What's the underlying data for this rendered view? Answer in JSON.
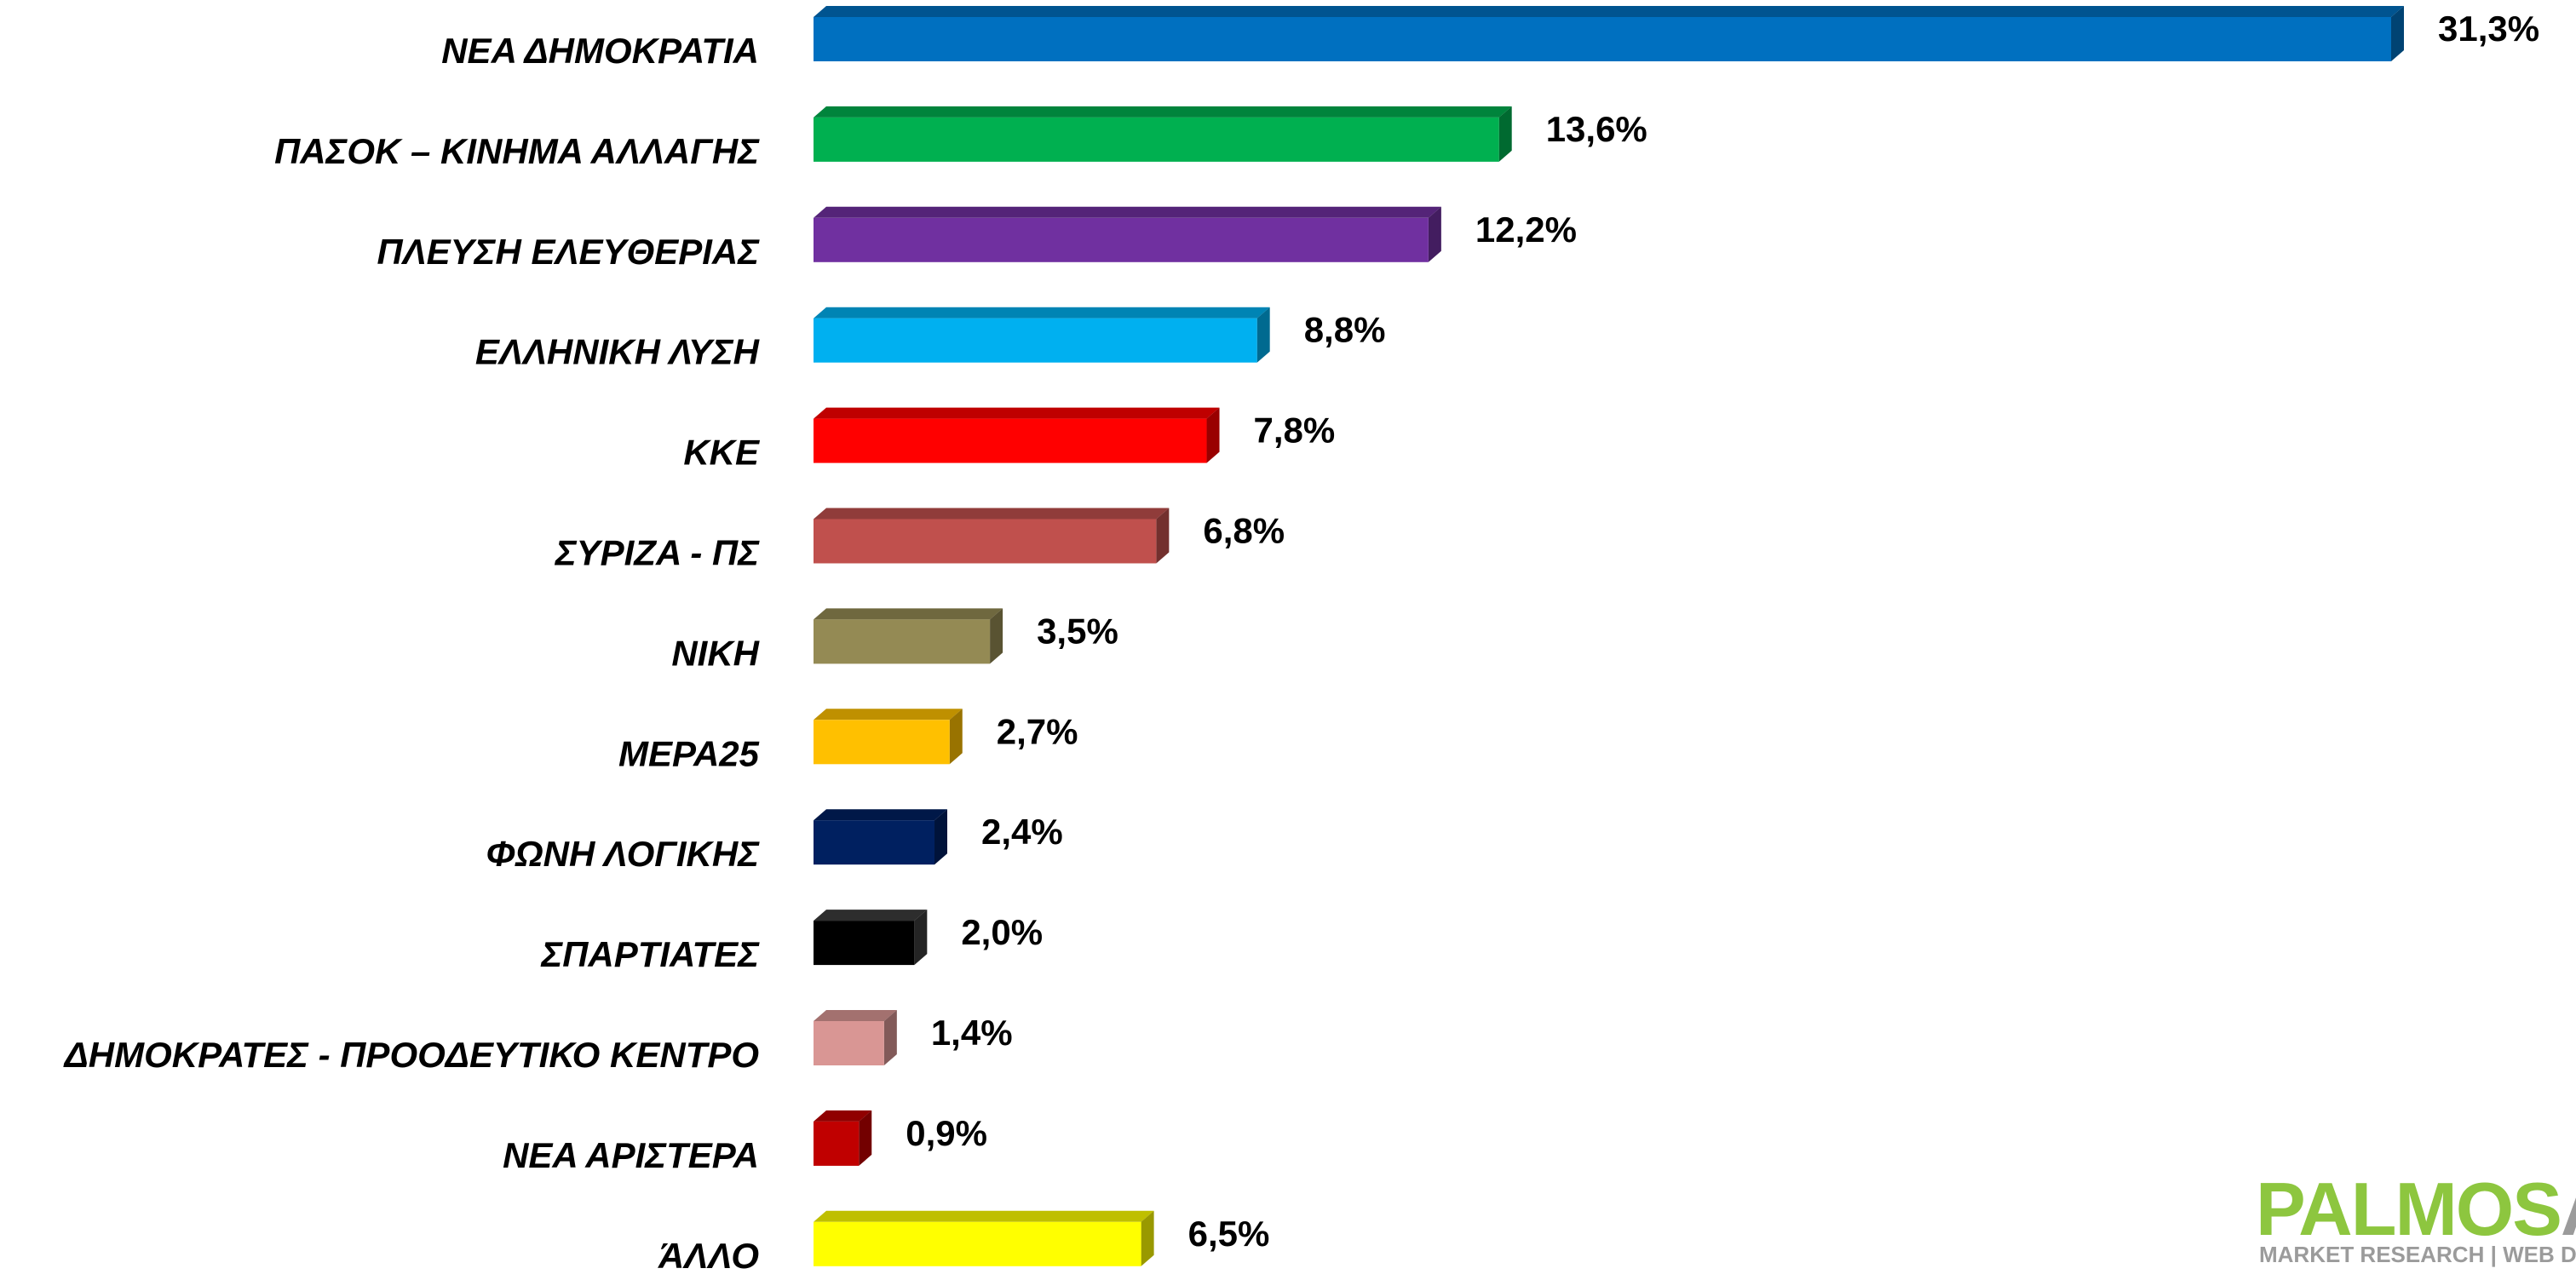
{
  "chart_data": {
    "type": "bar",
    "orientation": "horizontal",
    "categories": [
      "ΝΕΑ ΔΗΜΟΚΡΑΤΙΑ",
      "ΠΑΣΟΚ – ΚΙΝΗΜΑ ΑΛΛΑΓΗΣ",
      "ΠΛΕΥΣΗ ΕΛΕΥΘΕΡΙΑΣ",
      "ΕΛΛΗΝΙΚΗ ΛΥΣΗ",
      "ΚΚΕ",
      "ΣΥΡΙΖΑ - ΠΣ",
      "ΝΙΚΗ",
      "ΜΕΡΑ25",
      "ΦΩΝΗ ΛΟΓΙΚΗΣ",
      "ΣΠΑΡΤΙΑΤΕΣ",
      "ΔΗΜΟΚΡΑΤΕΣ - ΠΡΟΟΔΕΥΤΙΚΟ ΚΕΝΤΡΟ",
      "ΝΕΑ ΑΡΙΣΤΕΡΑ",
      "ΆΛΛΟ"
    ],
    "values": [
      31.3,
      13.6,
      12.2,
      8.8,
      7.8,
      6.8,
      3.5,
      2.7,
      2.4,
      2.0,
      1.4,
      0.9,
      6.5
    ],
    "value_labels": [
      "31,3%",
      "13,6%",
      "12,2%",
      "8,8%",
      "7,8%",
      "6,8%",
      "3,5%",
      "2,7%",
      "2,4%",
      "2,0%",
      "1,4%",
      "0,9%",
      "6,5%"
    ],
    "colors": [
      "#0070c0",
      "#00b050",
      "#7030a0",
      "#00b0f0",
      "#ff0000",
      "#c0504d",
      "#948a54",
      "#ffc000",
      "#002060",
      "#000000",
      "#d99694",
      "#c00000",
      "#ffff00"
    ]
  },
  "logo": {
    "name_part1": "PALMOS",
    "name_part2": "AN",
    "tagline": "MARKET RESEARCH | WEB DEVELOP"
  }
}
